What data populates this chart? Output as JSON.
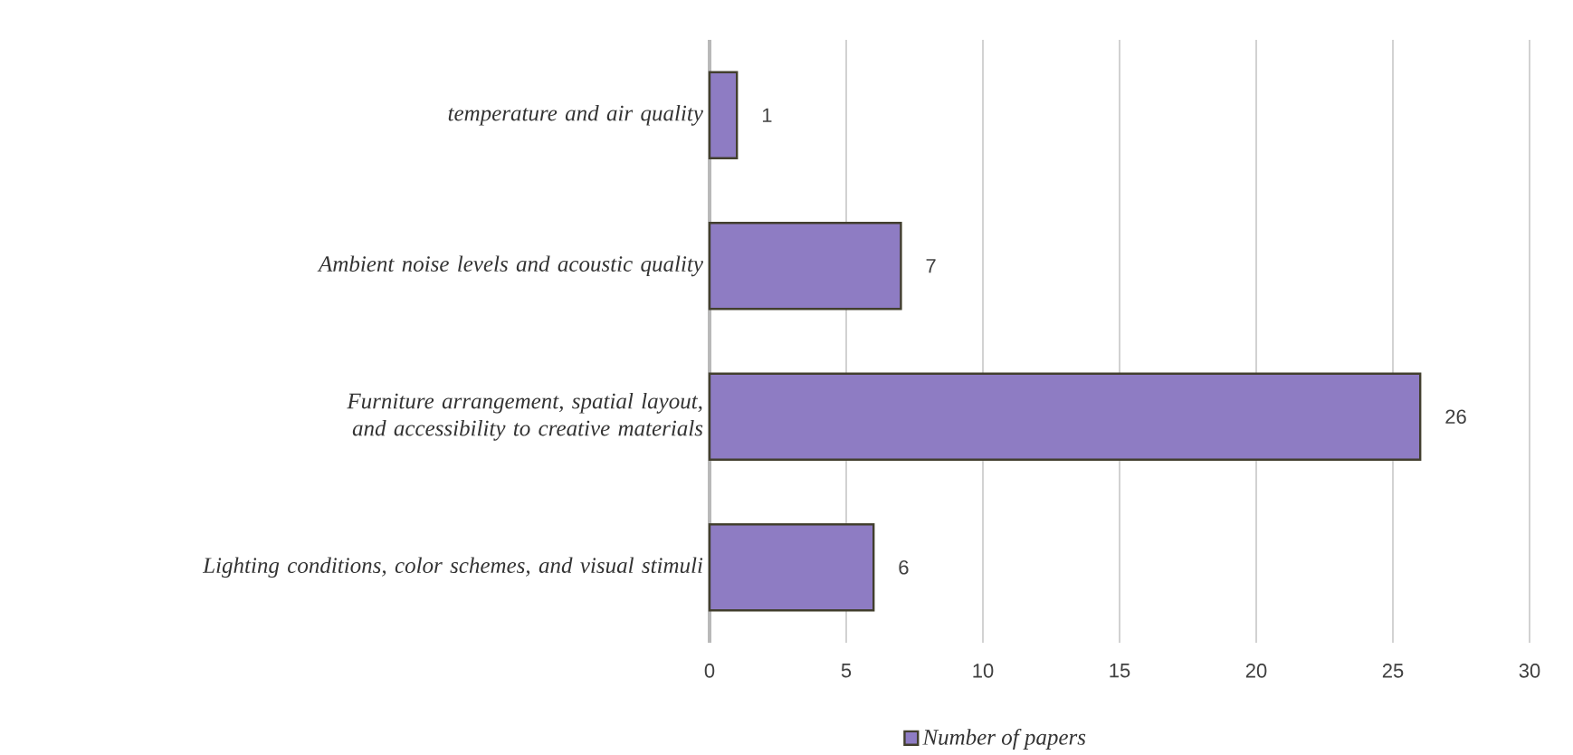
{
  "chart_data": {
    "type": "bar",
    "orientation": "horizontal",
    "categories": [
      "temperature and air quality",
      "Ambient noise levels and acoustic quality",
      "Furniture arrangement, spatial layout, and accessibility to creative materials",
      "Lighting conditions, color schemes, and visual stimuli"
    ],
    "series": [
      {
        "name": "Number of papers",
        "color": "#8e7cc3",
        "values": [
          1,
          7,
          26,
          6
        ]
      }
    ],
    "xlim": [
      0,
      30
    ],
    "xticks": [
      0,
      5,
      10,
      15,
      20,
      25,
      30
    ],
    "grid": "x",
    "legend": "bottom",
    "data_labels": true
  }
}
